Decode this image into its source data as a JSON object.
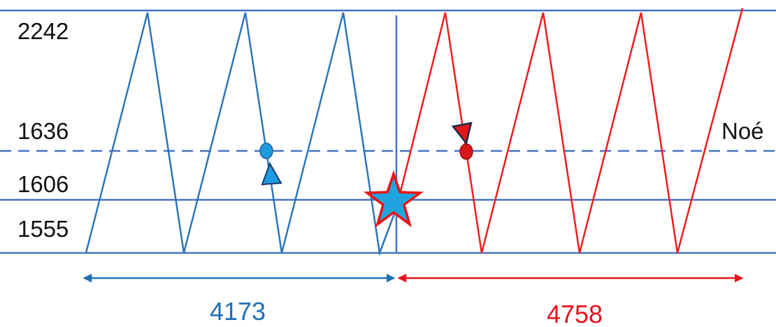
{
  "levels": [
    {
      "label": "2242",
      "style": "solid"
    },
    {
      "label": "1636",
      "style": "dashed"
    },
    {
      "label": "1606",
      "style": "solid"
    },
    {
      "label": "1555",
      "style": "solid"
    }
  ],
  "dashed_line_label": "Noé",
  "spans": {
    "left": {
      "label": "4173",
      "color": "#1f6fb5"
    },
    "right": {
      "label": "4758",
      "color": "#e8121c"
    }
  },
  "colors": {
    "grid": "#4472c4",
    "blue_wave": "#2e75b6",
    "red_wave": "#f01c1c",
    "blue_marker": "#1e9be0",
    "red_marker": "#d81818",
    "star_fill": "#1fa4e0",
    "star_stroke": "#ee1111"
  },
  "markers": [
    {
      "name": "blue-dot",
      "shape": "circle"
    },
    {
      "name": "blue-pointer",
      "shape": "triangle"
    },
    {
      "name": "red-dot",
      "shape": "circle"
    },
    {
      "name": "red-pointer",
      "shape": "triangle"
    },
    {
      "name": "junction-star",
      "shape": "star"
    }
  ]
}
